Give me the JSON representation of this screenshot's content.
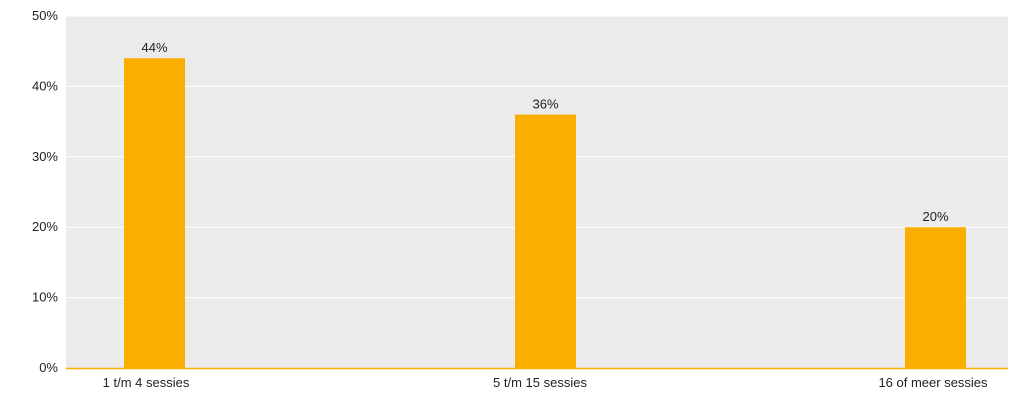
{
  "chart_data": {
    "type": "bar",
    "categories": [
      "1 t/m 4 sessies",
      "5 t/m 15 sessies",
      "16 of meer sessies"
    ],
    "values": [
      44,
      36,
      20
    ],
    "data_labels": [
      "44%",
      "36%",
      "20%"
    ],
    "title": "",
    "xlabel": "",
    "ylabel": "",
    "ylim": [
      0,
      50
    ],
    "yticks": [
      0,
      10,
      20,
      30,
      40,
      50
    ],
    "ytick_labels": [
      "0%",
      "10%",
      "20%",
      "30%",
      "40%",
      "50%"
    ],
    "grid": true,
    "legend": "none"
  },
  "colors": {
    "bar": "#F9AE00",
    "plot_background": "#EBEBEB",
    "gridline": "#FFFFFF",
    "baseline": "#F9AE00"
  }
}
